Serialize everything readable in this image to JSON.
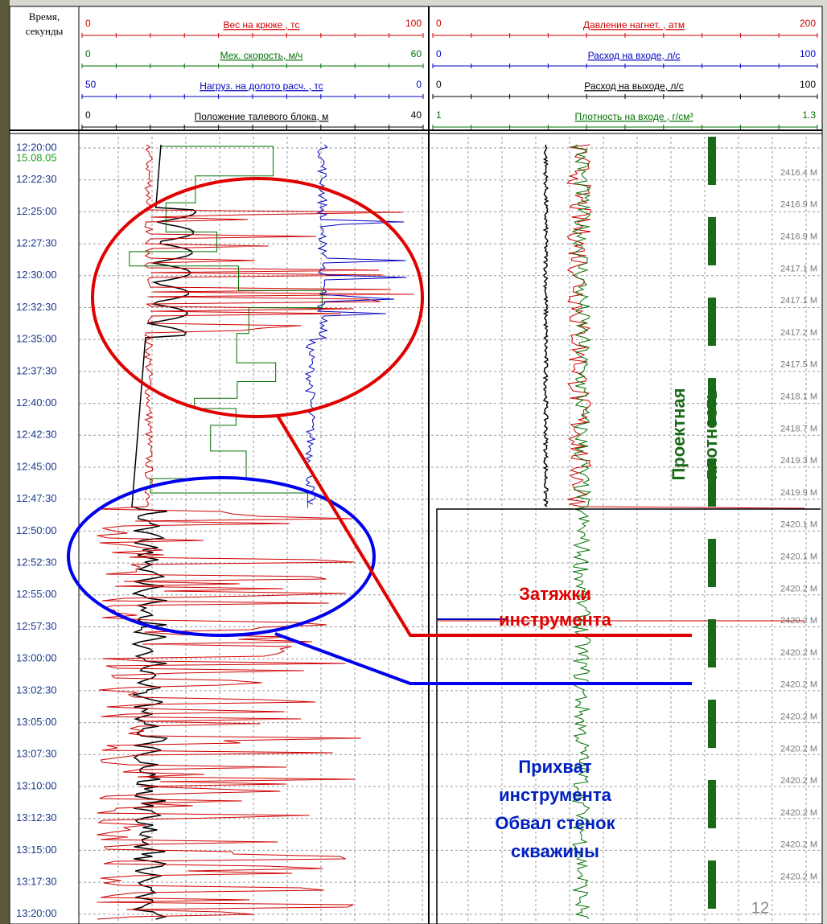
{
  "header": {
    "time_label": [
      "Время,",
      "секунды"
    ]
  },
  "tracks": [
    {
      "scales": [
        {
          "min": "0",
          "label": "Вес на крюке , тс",
          "max": "100",
          "color": "#d00000"
        },
        {
          "min": "0",
          "label": "Мех. скорость, м/ч",
          "max": "60",
          "color": "#007000"
        },
        {
          "min": "50",
          "label": "Нагруз. на долото расч. , тс",
          "max": "0",
          "color": "#0000c0"
        },
        {
          "min": "0",
          "label": "Положение талевого блока, м",
          "max": "40",
          "color": "#000000"
        }
      ]
    },
    {
      "scales": [
        {
          "min": "0",
          "label": "Давление нагнет. , атм",
          "max": "200",
          "color": "#d00000"
        },
        {
          "min": "0",
          "label": "Расход на входе, л/с",
          "max": "100",
          "color": "#0000c0"
        },
        {
          "min": "0",
          "label": "Расход на выходе, л/с",
          "max": "100",
          "color": "#000000"
        },
        {
          "min": "1",
          "label": "Плотность на входе , г/см³",
          "max": "1.3",
          "color": "#007000"
        }
      ]
    }
  ],
  "date": "15.08.05",
  "times": [
    "12:20:00",
    "12:22:30",
    "12:25:00",
    "12:27:30",
    "12:30:00",
    "12:32:30",
    "12:35:00",
    "12:37:30",
    "12:40:00",
    "12:42:30",
    "12:45:00",
    "12:47:30",
    "12:50:00",
    "12:52:30",
    "12:55:00",
    "12:57:30",
    "13:00:00",
    "13:02:30",
    "13:05:00",
    "13:07:30",
    "13:10:00",
    "13:12:30",
    "13:15:00",
    "13:17:30",
    "13:20:00"
  ],
  "depths": [
    "2416.4 M",
    "2416.9 M",
    "2416.9 M",
    "2417.1 M",
    "2417.1 M",
    "2417.2 M",
    "2417.5 M",
    "2418.1 M",
    "2418.7 M",
    "2419.3 M",
    "2419.9 M",
    "2420.1 M",
    "2420.1 M",
    "2420.2 M",
    "2420.2 M",
    "2420.2 M",
    "2420.2 M",
    "2420.2 M",
    "2420.2 M",
    "2420.2 M",
    "2420.2 M",
    "2420.2 M",
    "2420.2 M"
  ],
  "annotations": {
    "pull": [
      "Затяжки",
      "инструмента"
    ],
    "stuck": [
      "Прихват",
      "инструмента",
      "Обвал стенок",
      "скважины"
    ],
    "density": [
      "Проектная",
      "плотность"
    ]
  },
  "page_number": "12"
}
